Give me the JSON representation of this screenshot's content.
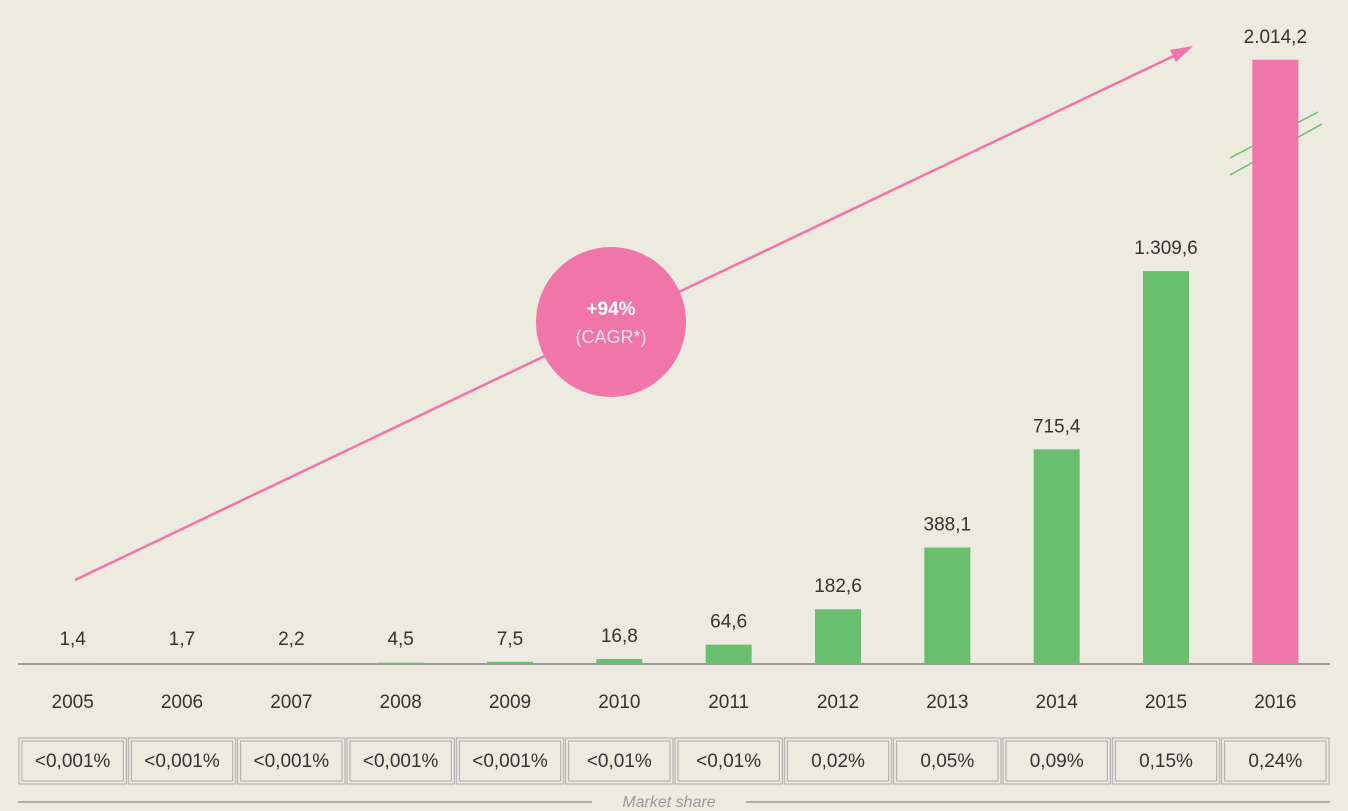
{
  "chart_data": {
    "type": "bar",
    "categories": [
      "2005",
      "2006",
      "2007",
      "2008",
      "2009",
      "2010",
      "2011",
      "2012",
      "2013",
      "2014",
      "2015",
      "2016"
    ],
    "values": [
      1.4,
      1.7,
      2.2,
      4.5,
      7.5,
      16.8,
      64.6,
      182.6,
      388.1,
      715.4,
      1309.6,
      2014.2
    ],
    "value_labels": [
      "1,4",
      "1,7",
      "2,2",
      "4,5",
      "7,5",
      "16,8",
      "64,6",
      "182,6",
      "388,1",
      "715,4",
      "1.309,6",
      "2.014,2"
    ],
    "colors": [
      "#6abf6e",
      "#6abf6e",
      "#6abf6e",
      "#6abf6e",
      "#6abf6e",
      "#6abf6e",
      "#6abf6e",
      "#6abf6e",
      "#6abf6e",
      "#6abf6e",
      "#6abf6e",
      "#f075a8"
    ],
    "ylim": [
      0,
      2100
    ],
    "annotation": {
      "value": "+94%",
      "label": "(CAGR*)"
    },
    "market_share": [
      "<0,001%",
      "<0,001%",
      "<0,001%",
      "<0,001%",
      "<0,001%",
      "<0,01%",
      "<0,01%",
      "0,02%",
      "0,05%",
      "0,09%",
      "0,15%",
      "0,24%"
    ],
    "market_share_label": "Market share"
  }
}
